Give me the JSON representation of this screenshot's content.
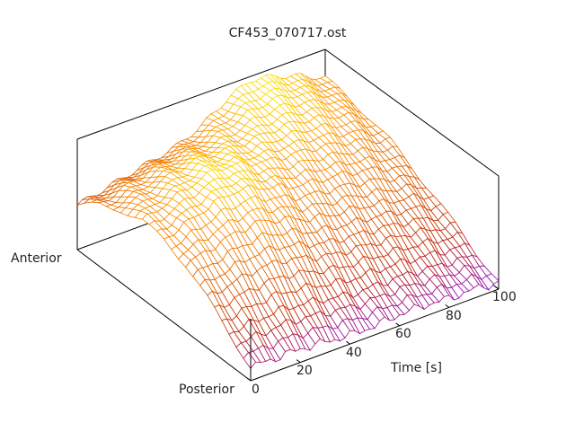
{
  "chart_data": {
    "type": "surface",
    "title": "CF453_070717.ost",
    "xlabel": "Time [s]",
    "ylabel_start": "Anterior",
    "ylabel_end": "Posterior",
    "x_ticks": [
      "0",
      "20",
      "40",
      "60",
      "80",
      "100"
    ],
    "x_tick_values": [
      0,
      20,
      40,
      60,
      80,
      100
    ],
    "xlim": [
      0,
      100
    ],
    "zlim": [
      0,
      1
    ],
    "time": [
      0,
      10,
      20,
      30,
      40,
      50,
      60,
      70,
      80,
      90,
      100
    ],
    "position_note": "columns run from Anterior to Posterior",
    "z": [
      [
        0.4,
        0.55,
        0.65,
        0.7,
        0.68,
        0.6,
        0.45,
        0.28,
        0.12
      ],
      [
        0.45,
        0.62,
        0.72,
        0.78,
        0.76,
        0.66,
        0.5,
        0.3,
        0.12
      ],
      [
        0.5,
        0.68,
        0.8,
        0.86,
        0.84,
        0.72,
        0.54,
        0.32,
        0.12
      ],
      [
        0.55,
        0.72,
        0.85,
        0.92,
        0.88,
        0.74,
        0.54,
        0.3,
        0.1
      ],
      [
        0.6,
        0.74,
        0.84,
        0.88,
        0.82,
        0.68,
        0.48,
        0.26,
        0.08
      ],
      [
        0.7,
        0.8,
        0.84,
        0.82,
        0.74,
        0.6,
        0.42,
        0.22,
        0.08
      ],
      [
        0.85,
        0.88,
        0.86,
        0.8,
        0.7,
        0.56,
        0.4,
        0.22,
        0.1
      ],
      [
        0.95,
        0.92,
        0.86,
        0.78,
        0.68,
        0.54,
        0.38,
        0.22,
        0.1
      ],
      [
        0.9,
        0.88,
        0.82,
        0.74,
        0.64,
        0.5,
        0.36,
        0.2,
        0.08
      ],
      [
        0.82,
        0.8,
        0.76,
        0.68,
        0.58,
        0.46,
        0.32,
        0.18,
        0.08
      ],
      [
        0.72,
        0.7,
        0.66,
        0.6,
        0.5,
        0.4,
        0.28,
        0.16,
        0.06
      ]
    ],
    "colormap": [
      "#8000ff",
      "#c02000",
      "#e06000",
      "#ff9000",
      "#ffff00"
    ]
  }
}
